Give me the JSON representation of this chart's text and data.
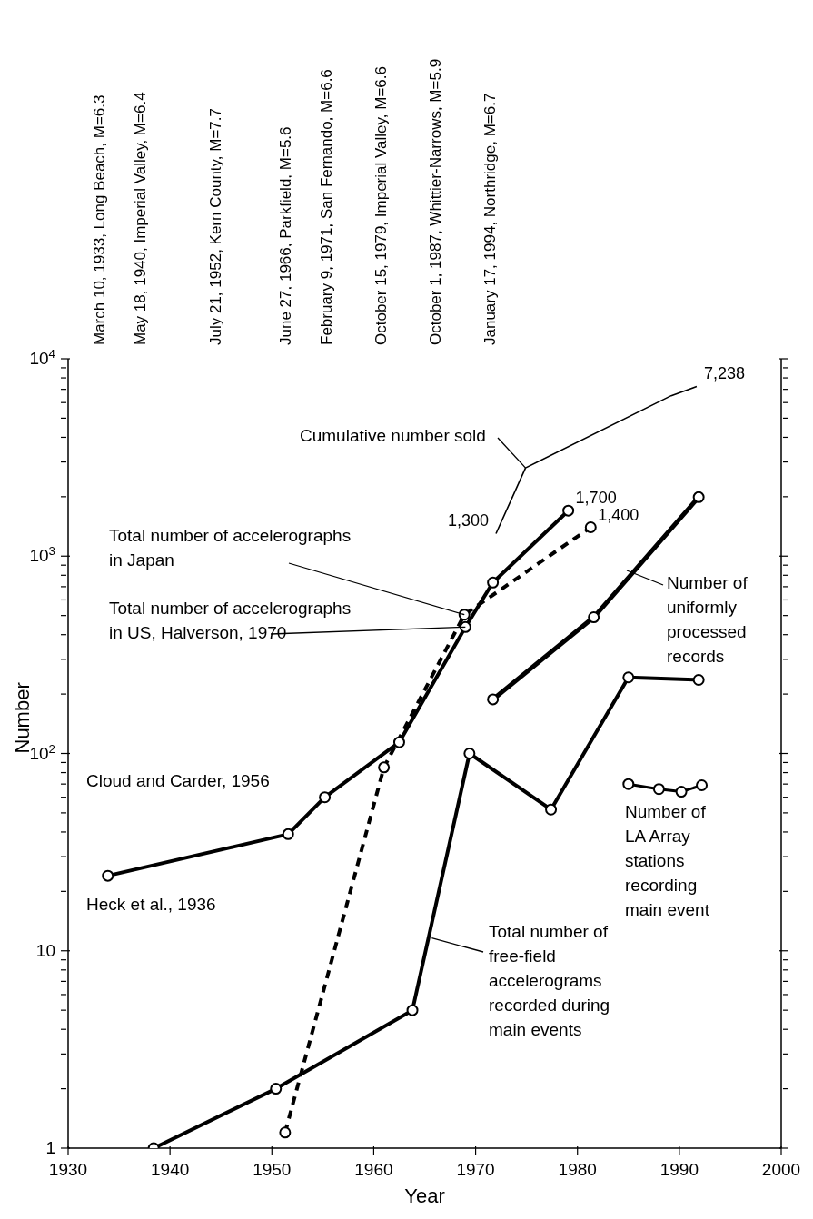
{
  "chart_data": {
    "type": "line",
    "xlabel": "Year",
    "ylabel": "Number",
    "log": "y",
    "data_labels": false,
    "xlim": [
      1930,
      2000
    ],
    "xticks": [
      1930,
      1940,
      1950,
      1960,
      1970,
      1980,
      1990,
      2000
    ],
    "ylim": [
      1,
      10000
    ],
    "yticks": [
      {
        "value": 1,
        "label": "1"
      },
      {
        "value": 2,
        "label": null
      },
      {
        "value": 3,
        "label": null
      },
      {
        "value": 4,
        "label": null
      },
      {
        "value": 5,
        "label": null
      },
      {
        "value": 6,
        "label": null
      },
      {
        "value": 7,
        "label": null
      },
      {
        "value": 8,
        "label": null
      },
      {
        "value": 9,
        "label": null
      },
      {
        "value": 10,
        "label": "10"
      },
      {
        "value": 20,
        "label": null
      },
      {
        "value": 30,
        "label": null
      },
      {
        "value": 40,
        "label": null
      },
      {
        "value": 50,
        "label": null
      },
      {
        "value": 60,
        "label": null
      },
      {
        "value": 70,
        "label": null
      },
      {
        "value": 80,
        "label": null
      },
      {
        "value": 90,
        "label": null
      },
      {
        "value": 100,
        "label": "10$^{2}$"
      },
      {
        "value": 200,
        "label": null
      },
      {
        "value": 300,
        "label": null
      },
      {
        "value": 400,
        "label": null
      },
      {
        "value": 500,
        "label": null
      },
      {
        "value": 600,
        "label": null
      },
      {
        "value": 700,
        "label": null
      },
      {
        "value": 800,
        "label": null
      },
      {
        "value": 900,
        "label": null
      },
      {
        "value": 1000,
        "label": "10$^{3}$"
      },
      {
        "value": 2000,
        "label": null
      },
      {
        "value": 3000,
        "label": null
      },
      {
        "value": 4000,
        "label": null
      },
      {
        "value": 5000,
        "label": null
      },
      {
        "value": 6000,
        "label": null
      },
      {
        "value": 7000,
        "label": null
      },
      {
        "value": 8000,
        "label": null
      },
      {
        "value": 9000,
        "label": null
      },
      {
        "value": 10000,
        "label": "10$^{4}$"
      }
    ],
    "series": [
      {
        "color": "#000000",
        "marker": "circle",
        "line_style": "solid",
        "x": [
          1933.9,
          1951.6,
          1955.2,
          1962.5,
          1969,
          1971.7,
          1979.1
        ],
        "values": [
          24,
          39,
          60,
          114,
          437,
          735,
          1700
        ],
        "value_labels": [
          null,
          null,
          null,
          null,
          null,
          null,
          "1,700"
        ]
      },
      {
        "color": "#000000",
        "marker": "circle",
        "line_style": "dashed",
        "x": [
          1951.3,
          1961,
          1968.9,
          1981.3
        ],
        "values": [
          1.2,
          85,
          505,
          1400
        ],
        "value_labels": [
          null,
          null,
          null,
          "1,400"
        ]
      },
      {
        "color": "#000000",
        "marker": "none",
        "line_style": "solid",
        "x": [
          1972,
          1974.9,
          1989.2,
          1991.7
        ],
        "values": [
          1300,
          2800,
          6500,
          7238
        ],
        "value_labels": [
          "1,300",
          null,
          null,
          "7,238"
        ]
      },
      {
        "color": "#000000",
        "marker": "circle",
        "line_style": "solid",
        "x": [
          1971.7,
          1981.6,
          1991.9
        ],
        "values": [
          188,
          490,
          1990
        ],
        "value_labels": [
          null,
          null,
          null
        ]
      },
      {
        "color": "#000000",
        "marker": "circle",
        "line_style": "solid",
        "x": [
          1938.4,
          1950.4,
          1963.8,
          1969.4,
          1977.4,
          1985,
          1991.9
        ],
        "values": [
          1,
          2,
          5,
          100,
          52,
          243,
          236
        ],
        "value_labels": [
          null,
          null,
          null,
          null,
          null,
          null,
          null
        ]
      },
      {
        "color": "#000000",
        "marker": "circle",
        "line_style": "solid",
        "x": [
          1985,
          1988,
          1990.2,
          1992.2
        ],
        "values": [
          70,
          66,
          64,
          69
        ],
        "value_labels": [
          null,
          null,
          null,
          null
        ]
      }
    ],
    "annotations": [
      {
        "text": "Cumulative number sold",
        "x": 1974.9,
        "y": 2800
      },
      {
        "text": "Total number of accelerographs in Japan",
        "x": 1968.9,
        "y": 505
      },
      {
        "text": "Total number of accelerographs in US, Halverson, 1970",
        "x": 1969,
        "y": 437
      },
      {
        "text": "Total number of free-field accelerograms recorded during main events",
        "x": 1965.7,
        "y": 11.6
      },
      "Number of uniformly processed records",
      "Cloud and Carder, 1956",
      "Heck et al., 1936",
      "Number of LA Array stations recording main event",
      "March 10, 1933, Long Beach, M=6.3",
      "May 18, 1940, Imperial Valley, M=6.4",
      "July 21, 1952, Kern County, M=7.7",
      "June 27, 1966, Parkfield, M=5.6",
      "February 9, 1971, San Fernando, M=6.6",
      "October 15, 1979, Imperial Valley, M=6.6",
      "October 1, 1987, Whittier-Narrows, M=5.9",
      "January 17, 1994, Northridge, M=6.7"
    ]
  }
}
